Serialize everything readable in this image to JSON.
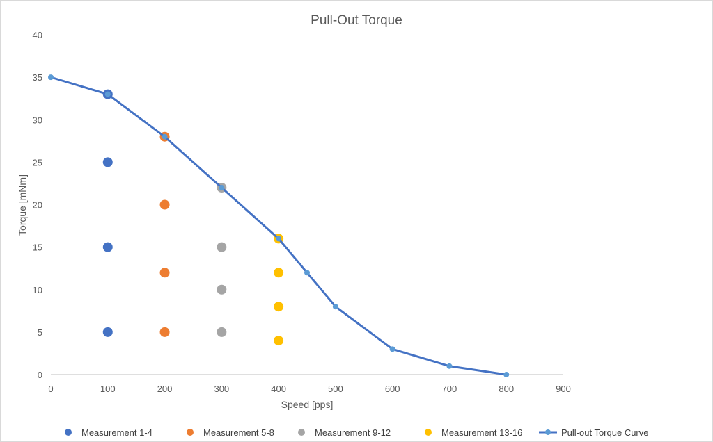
{
  "chart_data": {
    "type": "scatter",
    "title": "Pull-Out Torque",
    "xlabel": "Speed [pps]",
    "ylabel": "Torque [mNm]",
    "xlim": [
      0,
      900
    ],
    "ylim": [
      0,
      40
    ],
    "xticks": [
      0,
      100,
      200,
      300,
      400,
      500,
      600,
      700,
      800,
      900
    ],
    "yticks": [
      0,
      5,
      10,
      15,
      20,
      25,
      30,
      35,
      40
    ],
    "grid": false,
    "legend_position": "bottom",
    "series": [
      {
        "name": "Measurement 1-4",
        "kind": "scatter",
        "color": "#4472C4",
        "points": [
          [
            100,
            33
          ],
          [
            100,
            25
          ],
          [
            100,
            15
          ],
          [
            100,
            5
          ]
        ]
      },
      {
        "name": "Measurement 5-8",
        "kind": "scatter",
        "color": "#ED7D31",
        "points": [
          [
            200,
            28
          ],
          [
            200,
            20
          ],
          [
            200,
            12
          ],
          [
            200,
            5
          ]
        ]
      },
      {
        "name": "Measurement 9-12",
        "kind": "scatter",
        "color": "#A5A5A5",
        "points": [
          [
            300,
            22
          ],
          [
            300,
            15
          ],
          [
            300,
            10
          ],
          [
            300,
            5
          ]
        ]
      },
      {
        "name": "Measurement 13-16",
        "kind": "scatter",
        "color": "#FFC000",
        "points": [
          [
            400,
            16
          ],
          [
            400,
            12
          ],
          [
            400,
            8
          ],
          [
            400,
            4
          ]
        ]
      },
      {
        "name": "Pull-out Torque Curve",
        "kind": "line",
        "color": "#4472C4",
        "marker_color": "#5B9BD5",
        "points": [
          [
            0,
            35
          ],
          [
            100,
            33
          ],
          [
            200,
            28
          ],
          [
            300,
            22
          ],
          [
            400,
            16
          ],
          [
            450,
            12
          ],
          [
            500,
            8
          ],
          [
            600,
            3
          ],
          [
            700,
            1
          ],
          [
            800,
            0
          ]
        ]
      }
    ]
  }
}
